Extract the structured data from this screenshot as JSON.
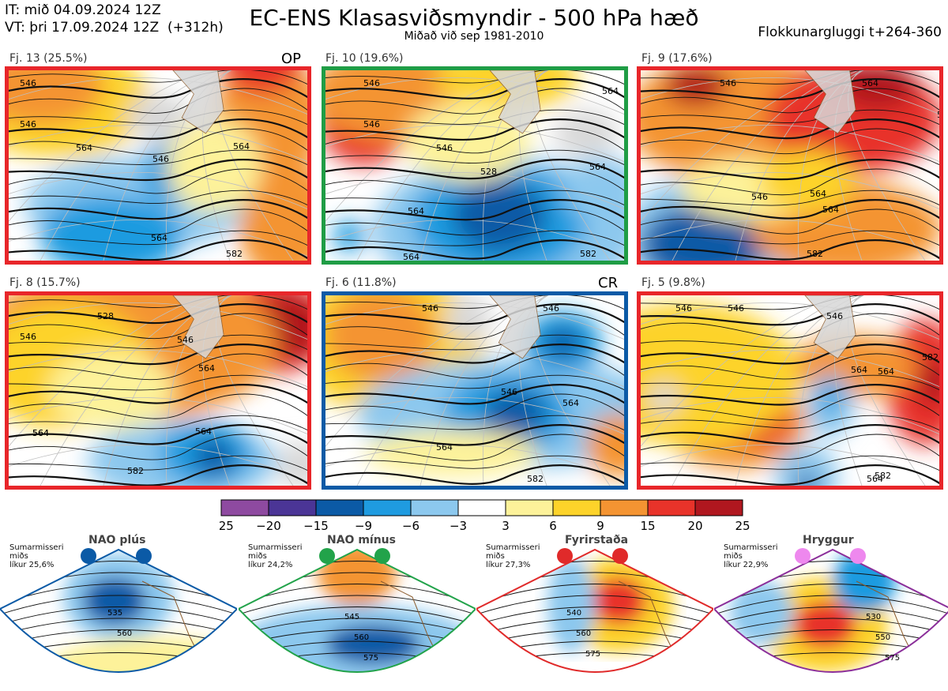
{
  "header": {
    "init_time": "IT: mið 04.09.2024 12Z",
    "valid_time": "VT: þri 17.09.2024 12Z  (+312h)",
    "title": "EC-ENS Klasasviðsmyndir - 500 hPa hæð",
    "subtitle": "Miðað við sep 1981-2010",
    "window": "Flokkunargluggi t+264-360"
  },
  "clusters": [
    {
      "label": "Fj. 13 (25.5%)",
      "tag": "OP",
      "border_color": "#e8262a",
      "contours": [
        "546",
        "546",
        "564",
        "546",
        "564",
        "564",
        "582"
      ]
    },
    {
      "label": "Fj. 10 (19.6%)",
      "tag": "",
      "border_color": "#1f9d45",
      "contours": [
        "546",
        "546",
        "564",
        "546",
        "564",
        "528",
        "564",
        "564",
        "582"
      ]
    },
    {
      "label": "Fj. 9 (17.6%)",
      "tag": "",
      "border_color": "#e8262a",
      "contours": [
        "546",
        "564",
        "56",
        "546",
        "564",
        "564",
        "582"
      ]
    },
    {
      "label": "Fj. 8 (15.7%)",
      "tag": "",
      "border_color": "#e8262a",
      "contours": [
        "546",
        "528",
        "564",
        "546",
        "564",
        "564",
        "564",
        "582"
      ]
    },
    {
      "label": "Fj. 6 (11.8%)",
      "tag": "CR",
      "border_color": "#0b5aa6",
      "contours": [
        "546",
        "546",
        "546",
        "564",
        "564",
        "582"
      ]
    },
    {
      "label": "Fj. 5 (9.8%)",
      "tag": "",
      "border_color": "#e8262a",
      "contours": [
        "546",
        "546",
        "546",
        "564",
        "564",
        "582",
        "564",
        "582"
      ]
    }
  ],
  "colorbar": {
    "ticks": [
      "−25",
      "−20",
      "−15",
      "−9",
      "−6",
      "−3",
      "3",
      "6",
      "9",
      "15",
      "20",
      "25"
    ],
    "colors": [
      "#8e4aa0",
      "#4b3596",
      "#0b5aa6",
      "#1f9be0",
      "#8cc8ee",
      "#ffffff",
      "#fdf29a",
      "#fdd32a",
      "#f49432",
      "#e8332a",
      "#b0171f"
    ]
  },
  "regimes": [
    {
      "name": "NAO plús",
      "note": "Sumarmisseri\nmiðs\nlíkur 25,6%",
      "border_color": "#0b5aa6",
      "dot_color": "#0b5aa6",
      "contours": [
        "535",
        "560"
      ]
    },
    {
      "name": "NAO mínus",
      "note": "Sumarmisseri\nmiðs\nlíkur 24,2%",
      "border_color": "#22a34a",
      "dot_color": "#22a34a",
      "contours": [
        "545",
        "560",
        "575"
      ]
    },
    {
      "name": "Fyrirstaða",
      "note": "Sumarmisseri\nmiðs\nlíkur 27,3%",
      "border_color": "#e02a2a",
      "dot_color": "#e02a2a",
      "contours": [
        "540",
        "560",
        "575"
      ]
    },
    {
      "name": "Hryggur",
      "note": "Sumarmisseri\nmiðs\nlíkur 22,9%",
      "border_color": "#8b2f9a",
      "dot_color": "#ee88ee",
      "contours": [
        "530",
        "550",
        "575"
      ]
    }
  ]
}
